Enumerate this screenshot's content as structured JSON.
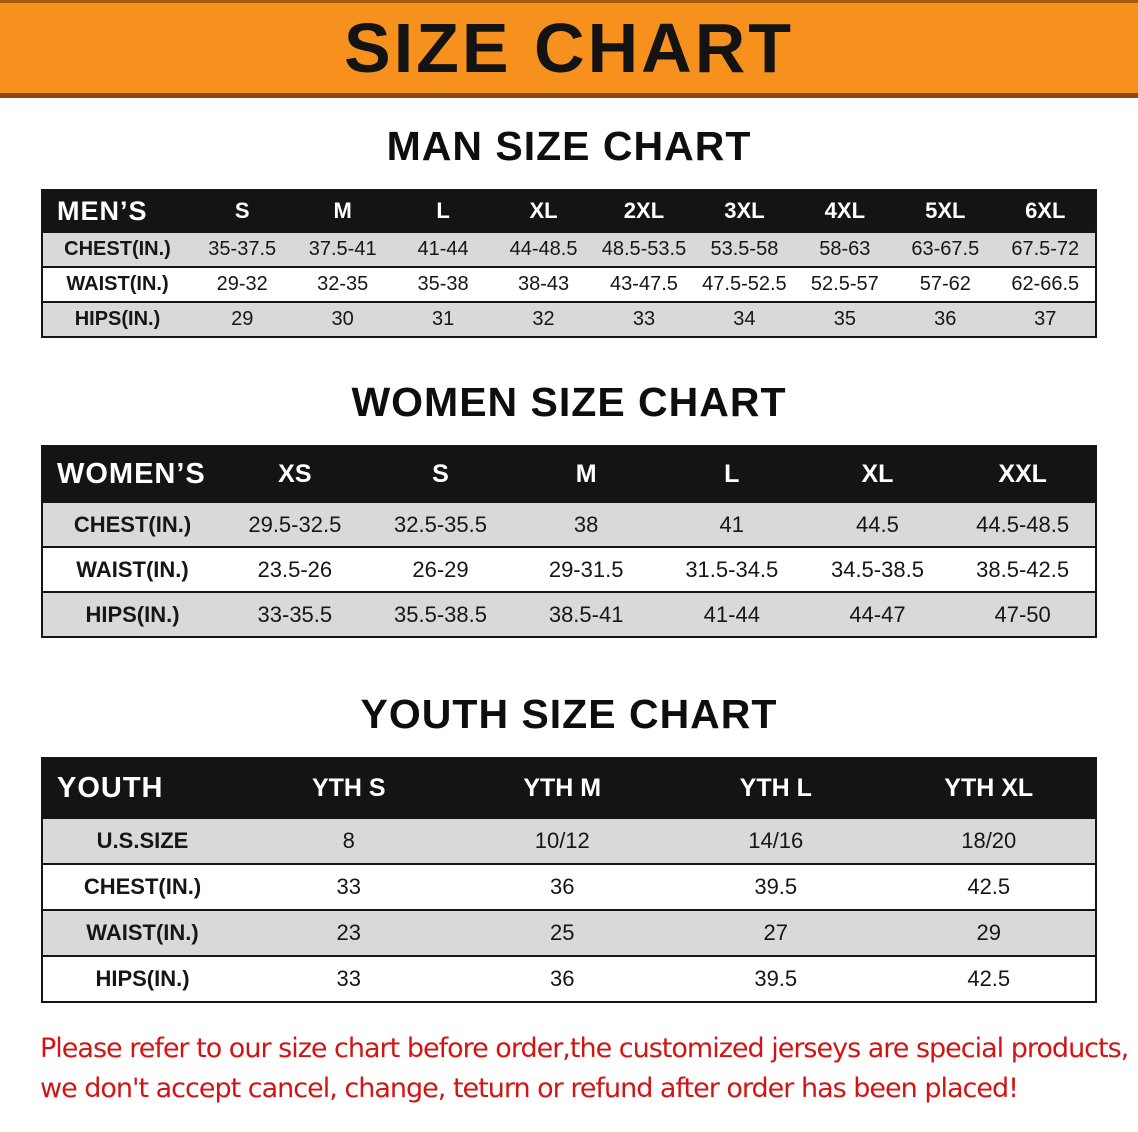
{
  "banner": {
    "title": "SIZE CHART"
  },
  "sections": {
    "men": {
      "heading": "MAN SIZE CHART",
      "table": {
        "corner_label": "MEN’S",
        "columns": [
          "S",
          "M",
          "L",
          "XL",
          "2XL",
          "3XL",
          "4XL",
          "5XL",
          "6XL"
        ],
        "rows": [
          {
            "label": "CHEST(IN.)",
            "values": [
              "35-37.5",
              "37.5-41",
              "41-44",
              "44-48.5",
              "48.5-53.5",
              "53.5-58",
              "58-63",
              "63-67.5",
              "67.5-72"
            ]
          },
          {
            "label": "WAIST(IN.)",
            "values": [
              "29-32",
              "32-35",
              "35-38",
              "38-43",
              "43-47.5",
              "47.5-52.5",
              "52.5-57",
              "57-62",
              "62-66.5"
            ]
          },
          {
            "label": "HIPS(IN.)",
            "values": [
              "29",
              "30",
              "31",
              "32",
              "33",
              "34",
              "35",
              "36",
              "37"
            ]
          }
        ]
      }
    },
    "women": {
      "heading": "WOMEN SIZE CHART",
      "table": {
        "corner_label": "WOMEN’S",
        "columns": [
          "XS",
          "S",
          "M",
          "L",
          "XL",
          "XXL"
        ],
        "rows": [
          {
            "label": "CHEST(IN.)",
            "values": [
              "29.5-32.5",
              "32.5-35.5",
              "38",
              "41",
              "44.5",
              "44.5-48.5"
            ]
          },
          {
            "label": "WAIST(IN.)",
            "values": [
              "23.5-26",
              "26-29",
              "29-31.5",
              "31.5-34.5",
              "34.5-38.5",
              "38.5-42.5"
            ]
          },
          {
            "label": "HIPS(IN.)",
            "values": [
              "33-35.5",
              "35.5-38.5",
              "38.5-41",
              "41-44",
              "44-47",
              "47-50"
            ]
          }
        ]
      }
    },
    "youth": {
      "heading": "YOUTH SIZE CHART",
      "table": {
        "corner_label": "YOUTH",
        "columns": [
          "YTH S",
          "YTH M",
          "YTH L",
          "YTH XL"
        ],
        "rows": [
          {
            "label": "U.S.SIZE",
            "values": [
              "8",
              "10/12",
              "14/16",
              "18/20"
            ]
          },
          {
            "label": "CHEST(IN.)",
            "values": [
              "33",
              "36",
              "39.5",
              "42.5"
            ]
          },
          {
            "label": "WAIST(IN.)",
            "values": [
              "23",
              "25",
              "27",
              "29"
            ]
          },
          {
            "label": "HIPS(IN.)",
            "values": [
              "33",
              "36",
              "39.5",
              "42.5"
            ]
          }
        ]
      }
    }
  },
  "disclaimer": {
    "line1": "Please refer to our size chart before order,the customized jerseys are special products,",
    "line2": "we don't accept cancel, change, teturn or refund after order has been placed!"
  },
  "colors": {
    "banner_bg": "#f6911e",
    "banner_edge_top": "#a55a10",
    "banner_edge_bottom": "#8c4a0d",
    "table_header_bg": "#141414",
    "row_alt_bg": "#d9d9d9",
    "table_border": "#151515",
    "disclaimer_red": "#d31414",
    "text_black": "#111111"
  }
}
